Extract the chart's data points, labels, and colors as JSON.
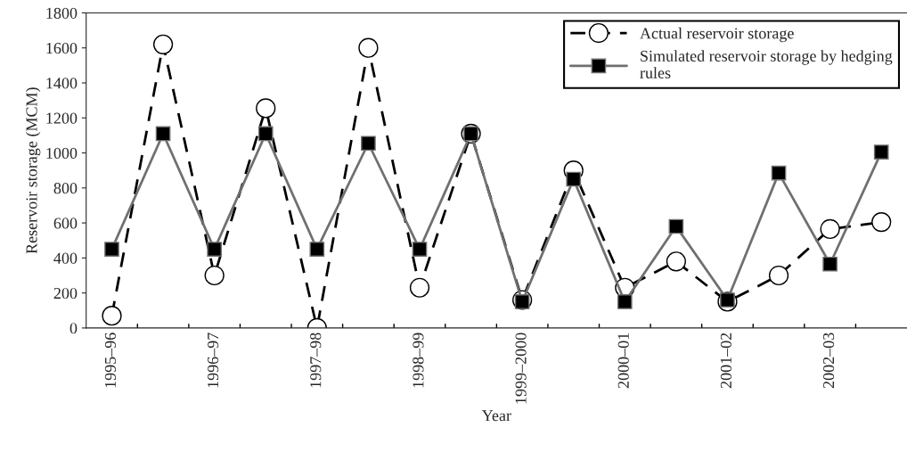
{
  "chart_data": {
    "type": "line",
    "xlabel": "Year",
    "ylabel": "Reservoir storage (MCM)",
    "categories": [
      "1995–96",
      null,
      "1996–97",
      null,
      "1997–98",
      null,
      "1998–99",
      null,
      "1999–2000",
      null,
      "2000–01",
      null,
      "2001–02",
      null,
      "2002–03",
      null
    ],
    "series": [
      {
        "name": "Actual reservoir storage",
        "color": "#000000",
        "marker": "circle",
        "line_style": "dashed",
        "values": [
          70,
          1620,
          300,
          1255,
          0,
          1600,
          230,
          1110,
          160,
          900,
          230,
          380,
          150,
          300,
          565,
          605
        ]
      },
      {
        "name": "Simulated reservoir storage by hedging\nrules",
        "color": "#707070",
        "marker": "square",
        "line_style": "solid",
        "values": [
          450,
          1110,
          450,
          1110,
          450,
          1055,
          450,
          1110,
          150,
          850,
          150,
          580,
          160,
          885,
          365,
          1005
        ]
      }
    ],
    "ylim": [
      0,
      1800
    ],
    "yticks": [
      0,
      200,
      400,
      600,
      800,
      1000,
      1200,
      1400,
      1600,
      1800
    ],
    "grid": false,
    "legend": "top right"
  }
}
